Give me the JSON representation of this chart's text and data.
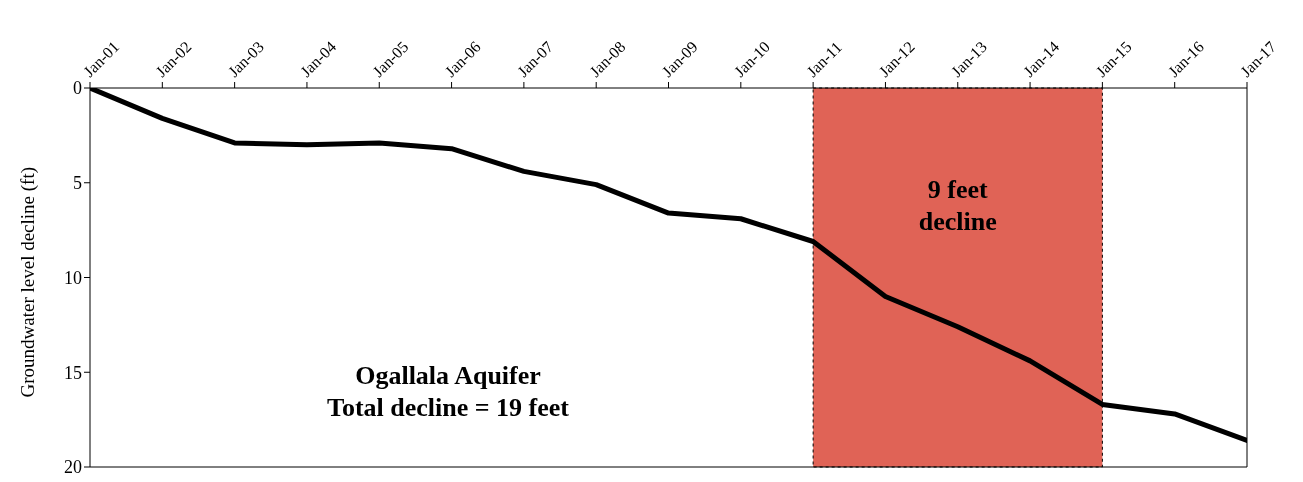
{
  "chart_data": {
    "type": "line",
    "ylabel": "Groundwater level decline (ft)",
    "categories": [
      "Jan-01",
      "Jan-02",
      "Jan-03",
      "Jan-04",
      "Jan-05",
      "Jan-06",
      "Jan-07",
      "Jan-08",
      "Jan-09",
      "Jan-10",
      "Jan-11",
      "Jan-12",
      "Jan-13",
      "Jan-14",
      "Jan-15",
      "Jan-16",
      "Jan-17"
    ],
    "series": [
      {
        "color": "#000000",
        "values": [
          0,
          1.6,
          2.9,
          3.0,
          2.9,
          3.2,
          4.4,
          5.1,
          6.6,
          6.9,
          8.1,
          11.0,
          12.6,
          14.4,
          16.7,
          17.2,
          18.6
        ]
      }
    ],
    "ylim": [
      20,
      0
    ],
    "yticks": [
      0,
      5,
      10,
      15,
      20
    ],
    "marker": "none",
    "line_style": "solid",
    "bands": [
      {
        "axis": "x",
        "from": "Jan-11",
        "to": "Jan-15",
        "label": "9 feet decline",
        "color": "#e06356"
      }
    ],
    "annotations": [
      "Ogallala Aquifer",
      "Total decline = 19 feet"
    ]
  }
}
